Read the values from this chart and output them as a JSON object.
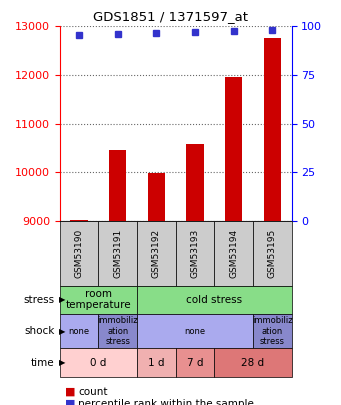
{
  "title": "GDS1851 / 1371597_at",
  "samples": [
    "GSM53190",
    "GSM53191",
    "GSM53192",
    "GSM53193",
    "GSM53194",
    "GSM53195"
  ],
  "counts": [
    9020,
    10450,
    9980,
    10580,
    11960,
    12750
  ],
  "percentiles": [
    95.5,
    96.0,
    96.5,
    97.0,
    97.5,
    98.0
  ],
  "ymin": 9000,
  "ymax": 13000,
  "yright_min": 0,
  "yright_max": 100,
  "yticks_left": [
    9000,
    10000,
    11000,
    12000,
    13000
  ],
  "yticks_right": [
    0,
    25,
    50,
    75,
    100
  ],
  "bar_color": "#cc0000",
  "dot_color": "#3333cc",
  "stress_row": [
    {
      "label": "room\ntemperature",
      "start": 0,
      "end": 2,
      "color": "#88dd88"
    },
    {
      "label": "cold stress",
      "start": 2,
      "end": 6,
      "color": "#88dd88"
    }
  ],
  "shock_row": [
    {
      "label": "none",
      "start": 0,
      "end": 1,
      "color": "#aaaaee"
    },
    {
      "label": "immobiliz\nation\nstress",
      "start": 1,
      "end": 2,
      "color": "#8888cc"
    },
    {
      "label": "none",
      "start": 2,
      "end": 5,
      "color": "#aaaaee"
    },
    {
      "label": "immobiliz\nation\nstress",
      "start": 5,
      "end": 6,
      "color": "#8888cc"
    }
  ],
  "time_row": [
    {
      "label": "0 d",
      "start": 0,
      "end": 2,
      "color": "#ffd0d0"
    },
    {
      "label": "1 d",
      "start": 2,
      "end": 3,
      "color": "#f0b0b0"
    },
    {
      "label": "7 d",
      "start": 3,
      "end": 4,
      "color": "#e89090"
    },
    {
      "label": "28 d",
      "start": 4,
      "end": 6,
      "color": "#dd7777"
    }
  ],
  "row_labels": [
    "stress",
    "shock",
    "time"
  ],
  "sample_bg_color": "#cccccc"
}
